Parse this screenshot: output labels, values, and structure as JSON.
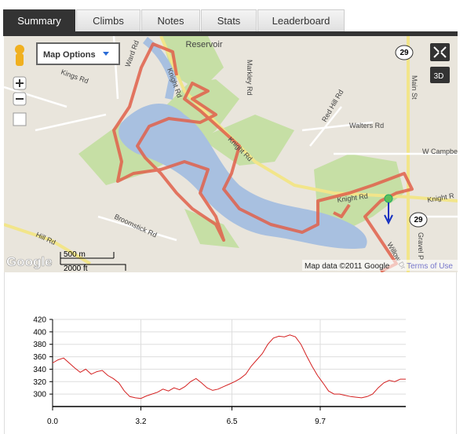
{
  "tabs": [
    "Summary",
    "Climbs",
    "Notes",
    "Stats",
    "Leaderboard"
  ],
  "map": {
    "options_button": "Map Options",
    "view_3d": "3D",
    "labels": [
      "Reservoir",
      "Ward Rd",
      "Knight Rd",
      "Markley Rd",
      "Kings Rd",
      "Red Hill Rd",
      "Walters Rd",
      "W Campbe",
      "Main St",
      "Knight Rd",
      "Knight Rd",
      "Broomstick Rd",
      "Hill Rd",
      "Willow Dr",
      "Gravel P",
      "Knight R",
      "29",
      "29"
    ],
    "scale": {
      "metric": "500 m",
      "imperial": "2000 ft"
    },
    "logo": "Google",
    "attribution": "Map data ©2011 Google",
    "terms_link": "Terms of Use"
  },
  "elevation_chart": {
    "type": "line",
    "color": "#d42020",
    "x": [
      0,
      0.2,
      0.4,
      0.6,
      0.8,
      1.0,
      1.2,
      1.4,
      1.6,
      1.8,
      2.0,
      2.2,
      2.4,
      2.6,
      2.8,
      3.0,
      3.2,
      3.4,
      3.6,
      3.8,
      4.0,
      4.2,
      4.4,
      4.6,
      4.8,
      5.0,
      5.2,
      5.4,
      5.6,
      5.8,
      6.0,
      6.2,
      6.4,
      6.6,
      6.8,
      7.0,
      7.2,
      7.4,
      7.6,
      7.8,
      8.0,
      8.2,
      8.4,
      8.6,
      8.8,
      9.0,
      9.2,
      9.4,
      9.6,
      9.8,
      10.0,
      10.2,
      10.4,
      10.6,
      10.8,
      11.0,
      11.2,
      11.4,
      11.6,
      11.8,
      12.0,
      12.2,
      12.4,
      12.6,
      12.8
    ],
    "values": [
      350,
      355,
      358,
      350,
      342,
      335,
      340,
      332,
      336,
      338,
      330,
      325,
      318,
      305,
      296,
      294,
      293,
      297,
      300,
      303,
      308,
      305,
      310,
      307,
      312,
      320,
      325,
      318,
      310,
      306,
      308,
      312,
      316,
      320,
      325,
      332,
      345,
      355,
      365,
      380,
      390,
      393,
      392,
      395,
      392,
      380,
      362,
      345,
      330,
      318,
      305,
      300,
      300,
      298,
      296,
      295,
      294,
      296,
      300,
      310,
      318,
      322,
      320,
      324,
      324
    ],
    "xlim": [
      0,
      12.8
    ],
    "ylim": [
      280,
      420
    ],
    "xticks": [
      {
        "value": 0,
        "label": "0.0"
      },
      3.2,
      6.5,
      9.7
    ],
    "yticks": [
      300,
      320,
      340,
      360,
      380,
      400,
      420
    ],
    "grid": true
  }
}
